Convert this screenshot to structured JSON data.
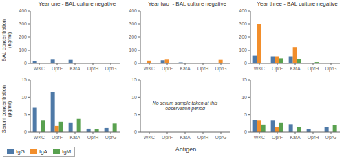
{
  "chart_data": [
    {
      "type": "bar",
      "title": "Year one - BAL culture negative",
      "ylabel": "BAL concentration\n(ng/ml)",
      "categories": [
        "WKC",
        "OprF",
        "KatA",
        "OprH",
        "OprG"
      ],
      "series": [
        {
          "name": "IgG",
          "color": "#4e79a7",
          "values": [
            20,
            30,
            28,
            0,
            0
          ]
        },
        {
          "name": "IgA",
          "color": "#f28e2b",
          "values": [
            0,
            0,
            0,
            0,
            0
          ]
        },
        {
          "name": "IgM",
          "color": "#59a14f",
          "values": [
            0,
            0,
            0,
            0,
            0
          ]
        }
      ],
      "ylim": [
        0,
        400
      ],
      "yticks": [
        0,
        100,
        200,
        300,
        400
      ],
      "grid": false
    },
    {
      "type": "bar",
      "title": "Year two  - BAL culture negative",
      "categories": [
        "WKC",
        "OprF",
        "KatA",
        "OprH",
        "OprG"
      ],
      "series": [
        {
          "name": "IgG",
          "color": "#4e79a7",
          "values": [
            0,
            25,
            8,
            0,
            0
          ]
        },
        {
          "name": "IgA",
          "color": "#f28e2b",
          "values": [
            22,
            30,
            0,
            0,
            28
          ]
        },
        {
          "name": "IgM",
          "color": "#59a14f",
          "values": [
            0,
            5,
            0,
            0,
            0
          ]
        }
      ],
      "ylim": [
        0,
        400
      ],
      "yticks": [
        0,
        100,
        200,
        300,
        400
      ],
      "grid": false
    },
    {
      "type": "bar",
      "title": "Year three - BAL culture negative",
      "categories": [
        "WKC",
        "OprF",
        "KatA",
        "OprH",
        "OprG"
      ],
      "series": [
        {
          "name": "IgG",
          "color": "#4e79a7",
          "values": [
            60,
            50,
            50,
            0,
            0
          ]
        },
        {
          "name": "IgA",
          "color": "#f28e2b",
          "values": [
            300,
            50,
            120,
            0,
            0
          ]
        },
        {
          "name": "IgM",
          "color": "#59a14f",
          "values": [
            0,
            40,
            35,
            10,
            0
          ]
        }
      ],
      "ylim": [
        0,
        400
      ],
      "yticks": [
        0,
        100,
        200,
        300,
        400
      ],
      "grid": false
    },
    {
      "type": "bar",
      "ylabel": "Serum concentration\n(μg/ml)",
      "categories": [
        "WKC",
        "OprF",
        "KatA",
        "OprH",
        "OprG"
      ],
      "series": [
        {
          "name": "IgG",
          "color": "#4e79a7",
          "values": [
            7.0,
            11.5,
            2.8,
            1.0,
            1.2
          ]
        },
        {
          "name": "IgA",
          "color": "#f28e2b",
          "values": [
            0,
            1.8,
            0,
            0,
            0
          ]
        },
        {
          "name": "IgM",
          "color": "#59a14f",
          "values": [
            3.3,
            3.0,
            3.8,
            0.8,
            2.5
          ]
        }
      ],
      "ylim": [
        0,
        15
      ],
      "yticks": [
        0,
        5,
        10,
        15
      ],
      "grid": false,
      "legend": "lower left"
    },
    {
      "type": "bar",
      "categories": [
        "WKC",
        "OprF",
        "KatA",
        "OprH",
        "OprG"
      ],
      "ylim": [
        0,
        15
      ],
      "yticks": [
        0,
        5,
        10,
        15
      ],
      "grid": false,
      "annotations": [
        "No serum sample taken at this observation period"
      ],
      "xlabel": "Antigen"
    },
    {
      "type": "bar",
      "categories": [
        "WKC",
        "OprF",
        "KatA",
        "OprH",
        "OprG"
      ],
      "series": [
        {
          "name": "IgG",
          "color": "#4e79a7",
          "values": [
            3.5,
            3.3,
            2.3,
            0.8,
            1.5
          ]
        },
        {
          "name": "IgA",
          "color": "#f28e2b",
          "values": [
            3.3,
            1.5,
            0,
            0,
            0
          ]
        },
        {
          "name": "IgM",
          "color": "#59a14f",
          "values": [
            2.2,
            2.8,
            1.5,
            0,
            2.0
          ]
        }
      ],
      "ylim": [
        0,
        15
      ],
      "yticks": [
        0,
        5,
        10,
        15
      ],
      "grid": false
    }
  ]
}
